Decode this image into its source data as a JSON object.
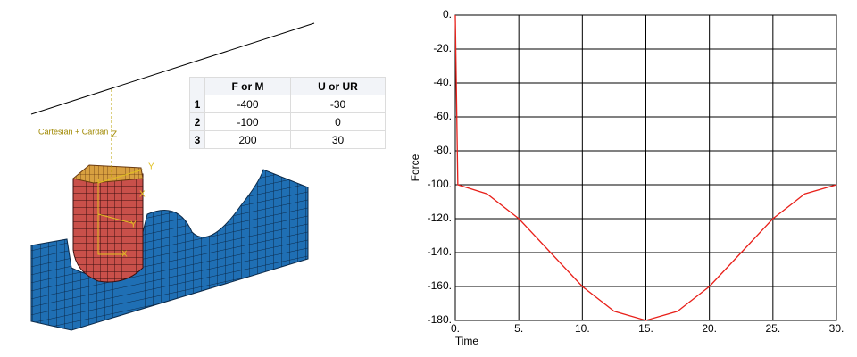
{
  "model": {
    "labels": [
      "Cartesian + Cardan",
      "Z",
      "Y",
      "X",
      "Y",
      "X"
    ]
  },
  "table": {
    "columns": [
      "F or M",
      "U or UR"
    ],
    "rows": [
      [
        "1",
        "-400",
        "-30"
      ],
      [
        "2",
        "-100",
        "0"
      ],
      [
        "3",
        "200",
        "30"
      ]
    ]
  },
  "chart_data": {
    "type": "line",
    "xlabel": "Time",
    "ylabel": "Force",
    "color": "#e8201a",
    "x": [
      0,
      0.2,
      2.5,
      5,
      7.5,
      10,
      12.5,
      15,
      17.5,
      20,
      22.5,
      25,
      27.5,
      30
    ],
    "values": [
      0,
      -100,
      -105.4,
      -120,
      -140,
      -160,
      -174.6,
      -180,
      -174.6,
      -160,
      -140,
      -120,
      -105.4,
      -100
    ],
    "xlim": [
      0,
      30
    ],
    "ylim": [
      -180,
      0
    ],
    "grid": true,
    "xticks": [
      {
        "value": 0,
        "label": "0."
      },
      {
        "value": 5,
        "label": "5."
      },
      {
        "value": 10,
        "label": "10."
      },
      {
        "value": 15,
        "label": "15."
      },
      {
        "value": 20,
        "label": "20."
      },
      {
        "value": 25,
        "label": "25."
      },
      {
        "value": 30,
        "label": "30."
      }
    ],
    "yticks": [
      {
        "value": 0,
        "label": "0."
      },
      {
        "value": -20,
        "label": "-20."
      },
      {
        "value": -40,
        "label": "-40."
      },
      {
        "value": -60,
        "label": "-60."
      },
      {
        "value": -80,
        "label": "-80."
      },
      {
        "value": -100,
        "label": "-100."
      },
      {
        "value": -120,
        "label": "-120."
      },
      {
        "value": -140,
        "label": "-140."
      },
      {
        "value": -160,
        "label": "-160."
      },
      {
        "value": -180,
        "label": "-180."
      }
    ]
  }
}
